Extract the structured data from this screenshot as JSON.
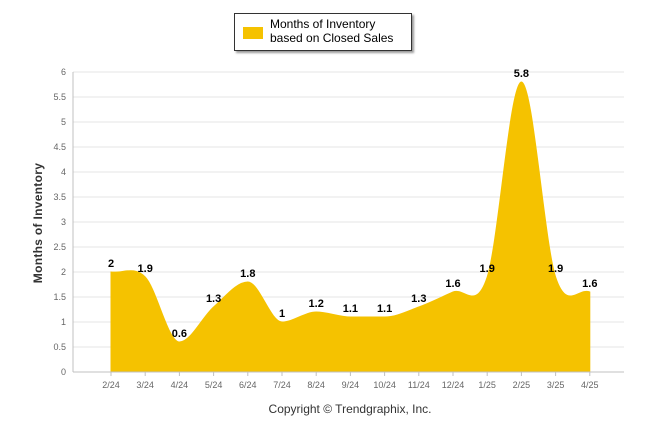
{
  "legend": {
    "label": "Months of Inventory based on Closed Sales",
    "color": "#f5c200"
  },
  "footer": {
    "copyright": "Copyright © Trendgraphix, Inc."
  },
  "chart_data": {
    "type": "area",
    "title": "",
    "xlabel": "",
    "ylabel": "Months of Inventory",
    "categories": [
      "2/24",
      "3/24",
      "4/24",
      "5/24",
      "6/24",
      "7/24",
      "8/24",
      "9/24",
      "10/24",
      "11/24",
      "12/24",
      "1/25",
      "2/25",
      "3/25",
      "4/25"
    ],
    "series": [
      {
        "name": "Months of Inventory based on Closed Sales",
        "values": [
          2,
          1.9,
          0.6,
          1.3,
          1.8,
          1,
          1.2,
          1.1,
          1.1,
          1.3,
          1.6,
          1.9,
          5.8,
          1.9,
          1.6
        ]
      }
    ],
    "data_labels": [
      "2",
      "1.9",
      "0.6",
      "1.3",
      "1.8",
      "1",
      "1.2",
      "1.1",
      "1.1",
      "1.3",
      "1.6",
      "1.9",
      "5.8",
      "1.9",
      "1.6"
    ],
    "ylim": [
      0,
      6
    ],
    "yticks": [
      "0",
      "0.5",
      "1",
      "1.5",
      "2",
      "2.5",
      "3",
      "3.5",
      "4",
      "4.5",
      "5",
      "5.5",
      "6"
    ],
    "grid": true,
    "legend_position": "top-center",
    "area_color": "#f5c200",
    "grid_color": "#e6e6e6",
    "axis_color": "#c0c0c0"
  }
}
